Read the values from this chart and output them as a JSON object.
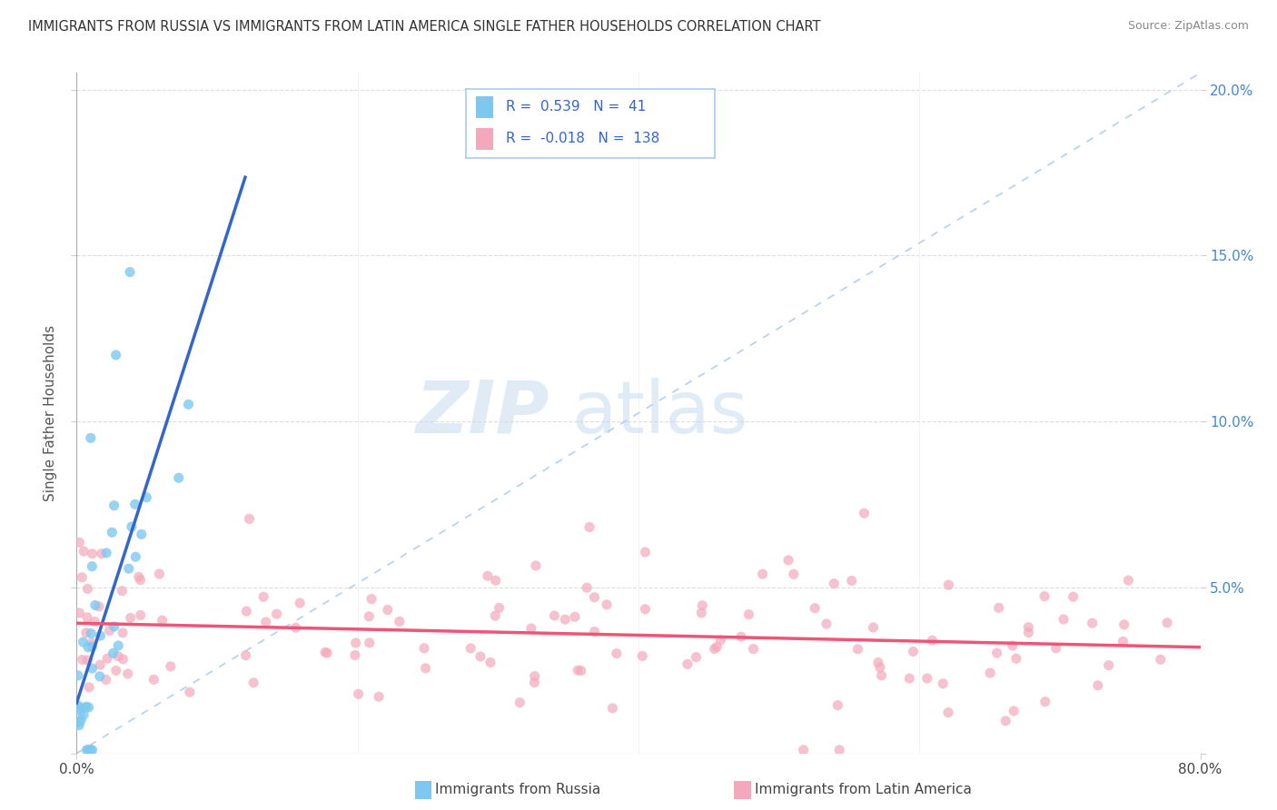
{
  "title": "IMMIGRANTS FROM RUSSIA VS IMMIGRANTS FROM LATIN AMERICA SINGLE FATHER HOUSEHOLDS CORRELATION CHART",
  "source": "Source: ZipAtlas.com",
  "xlabel_blue": "Immigrants from Russia",
  "xlabel_pink": "Immigrants from Latin America",
  "ylabel": "Single Father Households",
  "xmin": 0.0,
  "xmax": 0.8,
  "ymin": 0.0,
  "ymax": 0.205,
  "yticks": [
    0.0,
    0.05,
    0.1,
    0.15,
    0.2
  ],
  "right_ytick_labels": [
    "",
    "5.0%",
    "10.0%",
    "15.0%",
    "20.0%"
  ],
  "xticks": [
    0.0,
    0.8
  ],
  "xtick_labels": [
    "0.0%",
    "80.0%"
  ],
  "legend_blue_R": "0.539",
  "legend_blue_N": "41",
  "legend_pink_R": "-0.018",
  "legend_pink_N": "138",
  "blue_color": "#7EC8F0",
  "pink_color": "#F4A8BB",
  "trendline_blue_color": "#3366CC",
  "trendline_pink_color": "#EE5577",
  "diag_color": "#AACCEE",
  "watermark_zip": "ZIP",
  "watermark_atlas": "atlas",
  "title_fontsize": 10.5,
  "source_fontsize": 9,
  "tick_fontsize": 11,
  "ylabel_fontsize": 11
}
